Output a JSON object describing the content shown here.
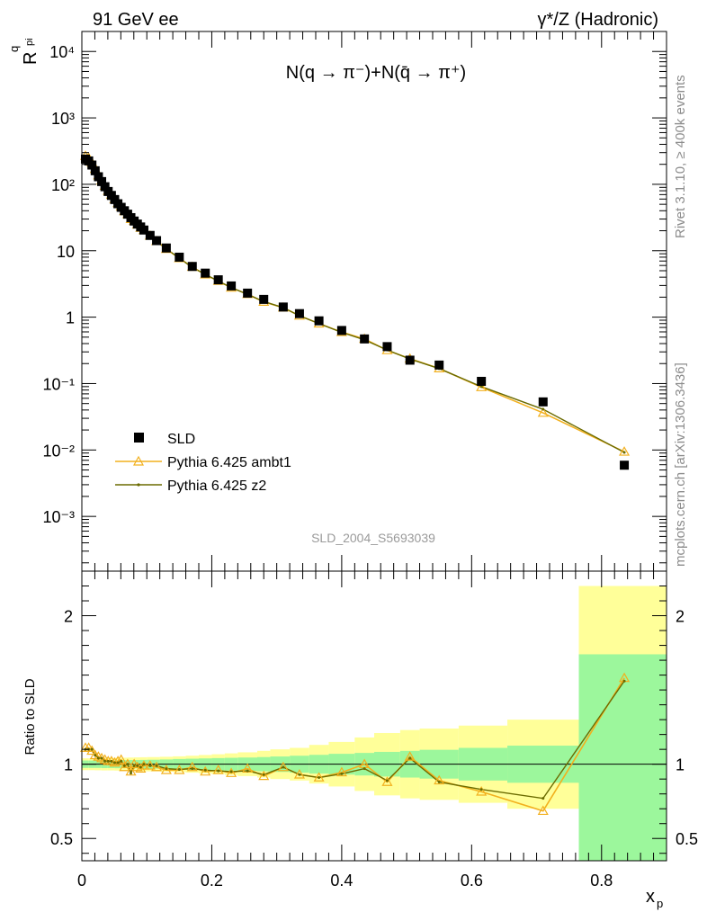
{
  "header": {
    "left": "91 GeV ee",
    "right": "γ*/Z (Hadronic)"
  },
  "side": {
    "rivet": "Rivet 3.1.10, ≥ 400k events",
    "source": "mcplots.cern.ch [arXiv:1306.3436]"
  },
  "colors": {
    "sld": "#000000",
    "ambt1": "#f2b01e",
    "z2": "#6b6b00",
    "band_inner": "#9cf79c",
    "band_outer": "#ffff99"
  },
  "chart_data": [
    {
      "type": "scatter",
      "panel": "main",
      "title": "N(q → π⁻)+N(q̄ → π⁺)",
      "watermark": "SLD_2004_S5693039",
      "xlabel": "x_p",
      "ylabel": "R^q_pi",
      "xlim": [
        0,
        0.9
      ],
      "ylim": [
        0.00015,
        20000
      ],
      "yscale": "log",
      "ytick_labels": [
        "10⁻³",
        "10⁻²",
        "10⁻¹",
        "1",
        "10",
        "10²",
        "10³",
        "10⁴"
      ],
      "legend_position": "lower-left",
      "series": [
        {
          "name": "SLD",
          "marker": "square",
          "x": [
            0.0055,
            0.0105,
            0.0155,
            0.0205,
            0.0255,
            0.0305,
            0.0355,
            0.0405,
            0.0455,
            0.0505,
            0.0555,
            0.0605,
            0.0655,
            0.0705,
            0.0755,
            0.0805,
            0.0855,
            0.0905,
            0.0955,
            0.105,
            0.115,
            0.13,
            0.15,
            0.17,
            0.19,
            0.21,
            0.23,
            0.255,
            0.28,
            0.31,
            0.335,
            0.365,
            0.4,
            0.435,
            0.47,
            0.505,
            0.55,
            0.615,
            0.71,
            0.835
          ],
          "y": [
            240,
            225,
            195,
            160,
            130,
            110,
            92,
            78,
            68,
            59,
            51,
            45,
            40,
            35.5,
            31.5,
            28,
            25.2,
            22.8,
            20.5,
            17,
            14.2,
            11,
            8,
            5.8,
            4.6,
            3.65,
            2.95,
            2.3,
            1.85,
            1.42,
            1.13,
            0.88,
            0.63,
            0.47,
            0.36,
            0.225,
            0.19,
            0.108,
            0.053,
            0.0059
          ]
        },
        {
          "name": "Pythia 6.425 ambt1",
          "marker": "triangle",
          "x": [
            0.0055,
            0.0105,
            0.0155,
            0.0205,
            0.0255,
            0.0305,
            0.0355,
            0.0405,
            0.0455,
            0.0505,
            0.0555,
            0.0605,
            0.0655,
            0.0705,
            0.0755,
            0.0805,
            0.0855,
            0.0905,
            0.0955,
            0.105,
            0.115,
            0.13,
            0.15,
            0.17,
            0.19,
            0.21,
            0.23,
            0.255,
            0.28,
            0.31,
            0.335,
            0.365,
            0.4,
            0.435,
            0.47,
            0.505,
            0.55,
            0.615,
            0.71,
            0.835
          ],
          "y": [
            267,
            250,
            212,
            170,
            136,
            114,
            94.7,
            79.6,
            69.4,
            59.6,
            52.0,
            46.4,
            39.2,
            35.5,
            29.9,
            28.0,
            24.7,
            22.1,
            20.3,
            16.8,
            13.9,
            10.6,
            7.7,
            5.7,
            4.37,
            3.5,
            2.77,
            2.22,
            1.7,
            1.39,
            1.05,
            0.8,
            0.595,
            0.47,
            0.317,
            0.237,
            0.169,
            0.088,
            0.0362,
            0.0094
          ]
        },
        {
          "name": "Pythia 6.425 z2",
          "marker": "dot",
          "x": [
            0.0055,
            0.0105,
            0.0155,
            0.0205,
            0.0255,
            0.0305,
            0.0355,
            0.0405,
            0.0455,
            0.0505,
            0.0555,
            0.0605,
            0.0655,
            0.0705,
            0.0755,
            0.0805,
            0.0855,
            0.0905,
            0.0955,
            0.105,
            0.115,
            0.13,
            0.15,
            0.17,
            0.19,
            0.21,
            0.23,
            0.255,
            0.28,
            0.31,
            0.335,
            0.365,
            0.4,
            0.435,
            0.47,
            0.505,
            0.55,
            0.615,
            0.71,
            0.835
          ],
          "y": [
            264,
            248,
            214,
            169,
            135,
            114,
            94.3,
            79.6,
            69.4,
            59.6,
            51.7,
            46.2,
            39.6,
            35.5,
            29.6,
            27.7,
            24.9,
            22.3,
            20.5,
            16.8,
            14.0,
            10.7,
            7.72,
            5.6,
            4.42,
            3.48,
            2.8,
            2.2,
            1.72,
            1.39,
            1.05,
            0.8,
            0.59,
            0.455,
            0.32,
            0.234,
            0.168,
            0.09,
            0.041,
            0.0092
          ]
        }
      ]
    },
    {
      "type": "line",
      "panel": "ratio",
      "ylabel": "Ratio to SLD",
      "xlabel": "x_p",
      "xlim": [
        0,
        0.9
      ],
      "ylim": [
        0.35,
        2.3
      ],
      "xticks": [
        0,
        0.2,
        0.4,
        0.6,
        0.8
      ],
      "yticks": [
        0.5,
        1,
        2
      ],
      "reference_line": 1,
      "bands": {
        "edges": [
          0,
          0.01,
          0.02,
          0.03,
          0.04,
          0.05,
          0.06,
          0.07,
          0.08,
          0.09,
          0.1,
          0.12,
          0.14,
          0.16,
          0.18,
          0.2,
          0.22,
          0.24,
          0.27,
          0.29,
          0.32,
          0.35,
          0.38,
          0.42,
          0.45,
          0.49,
          0.52,
          0.58,
          0.655,
          0.765,
          0.9
        ],
        "inner": [
          0.025,
          0.025,
          0.025,
          0.026,
          0.026,
          0.027,
          0.027,
          0.028,
          0.028,
          0.029,
          0.03,
          0.032,
          0.035,
          0.037,
          0.039,
          0.041,
          0.043,
          0.045,
          0.048,
          0.052,
          0.057,
          0.063,
          0.07,
          0.076,
          0.083,
          0.09,
          0.097,
          0.11,
          0.125,
          0.74
        ],
        "outer": [
          0.04,
          0.04,
          0.041,
          0.042,
          0.042,
          0.043,
          0.044,
          0.045,
          0.046,
          0.047,
          0.048,
          0.05,
          0.053,
          0.057,
          0.062,
          0.067,
          0.073,
          0.08,
          0.09,
          0.1,
          0.11,
          0.13,
          0.15,
          0.18,
          0.21,
          0.23,
          0.24,
          0.26,
          0.3,
          1.2
        ]
      },
      "series": [
        {
          "name": "Pythia 6.425 ambt1",
          "x": [
            0.0055,
            0.0105,
            0.0155,
            0.0205,
            0.0255,
            0.0305,
            0.0355,
            0.0405,
            0.0455,
            0.0505,
            0.0555,
            0.0605,
            0.0655,
            0.0705,
            0.0755,
            0.0805,
            0.0855,
            0.0905,
            0.0955,
            0.105,
            0.115,
            0.13,
            0.15,
            0.17,
            0.19,
            0.21,
            0.23,
            0.255,
            0.28,
            0.31,
            0.335,
            0.365,
            0.4,
            0.435,
            0.47,
            0.505,
            0.55,
            0.615,
            0.71,
            0.835
          ],
          "y": [
            1.11,
            1.11,
            1.09,
            1.06,
            1.05,
            1.04,
            1.03,
            1.02,
            1.02,
            1.01,
            1.02,
            1.03,
            0.98,
            1.0,
            0.95,
            1.0,
            0.98,
            0.97,
            0.99,
            0.99,
            0.98,
            0.96,
            0.96,
            0.98,
            0.95,
            0.96,
            0.94,
            0.97,
            0.92,
            0.98,
            0.93,
            0.91,
            0.945,
            1.0,
            0.88,
            1.05,
            0.89,
            0.815,
            0.685,
            1.58
          ]
        },
        {
          "name": "Pythia 6.425 z2",
          "x": [
            0.0055,
            0.0105,
            0.0155,
            0.0205,
            0.0255,
            0.0305,
            0.0355,
            0.0405,
            0.0455,
            0.0505,
            0.0555,
            0.0605,
            0.0655,
            0.0705,
            0.0755,
            0.0805,
            0.0855,
            0.0905,
            0.0955,
            0.105,
            0.115,
            0.13,
            0.15,
            0.17,
            0.19,
            0.21,
            0.23,
            0.255,
            0.28,
            0.31,
            0.335,
            0.365,
            0.4,
            0.435,
            0.47,
            0.505,
            0.55,
            0.615,
            0.71,
            0.835
          ],
          "y": [
            1.1,
            1.1,
            1.1,
            1.06,
            1.04,
            1.04,
            1.02,
            1.02,
            1.02,
            1.01,
            1.01,
            1.02,
            0.99,
            1.0,
            0.94,
            0.99,
            0.99,
            0.98,
            1.0,
            0.99,
            0.99,
            0.97,
            0.965,
            0.97,
            0.96,
            0.955,
            0.95,
            0.955,
            0.93,
            0.98,
            0.93,
            0.91,
            0.935,
            0.97,
            0.89,
            1.04,
            0.88,
            0.83,
            0.77,
            1.56
          ]
        }
      ]
    }
  ]
}
